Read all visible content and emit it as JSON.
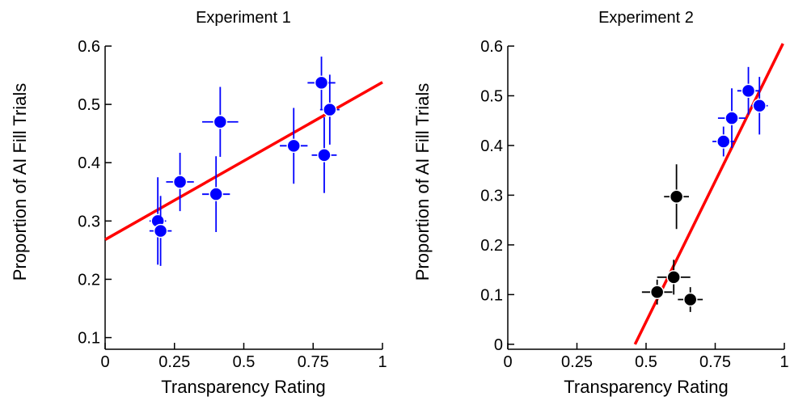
{
  "chart_data": [
    {
      "type": "scatter",
      "title": "Experiment 1",
      "xlabel": "Transparency Rating",
      "ylabel": "Proportion of AI Fill Trials",
      "xlim": [
        0,
        1
      ],
      "ylim": [
        0.08,
        0.6
      ],
      "xticks": [
        0,
        0.25,
        0.5,
        0.75,
        1
      ],
      "xtick_labels": [
        "0",
        "0.25",
        "0.5",
        "0.75",
        "1"
      ],
      "yticks": [
        0.1,
        0.2,
        0.3,
        0.4,
        0.5,
        0.6
      ],
      "ytick_labels": [
        "0.1",
        "0.2",
        "0.3",
        "0.4",
        "0.5",
        "0.6"
      ],
      "grid": false,
      "series": [
        {
          "color": "#0000ff",
          "points": [
            {
              "x": 0.19,
              "y": 0.3,
              "xerr": 0.03,
              "yerr": 0.075
            },
            {
              "x": 0.2,
              "y": 0.283,
              "xerr": 0.04,
              "yerr": 0.06
            },
            {
              "x": 0.27,
              "y": 0.367,
              "xerr": 0.05,
              "yerr": 0.05
            },
            {
              "x": 0.4,
              "y": 0.346,
              "xerr": 0.05,
              "yerr": 0.065
            },
            {
              "x": 0.415,
              "y": 0.47,
              "xerr": 0.065,
              "yerr": 0.06
            },
            {
              "x": 0.68,
              "y": 0.429,
              "xerr": 0.05,
              "yerr": 0.065
            },
            {
              "x": 0.78,
              "y": 0.537,
              "xerr": 0.05,
              "yerr": 0.045
            },
            {
              "x": 0.79,
              "y": 0.413,
              "xerr": 0.045,
              "yerr": 0.065
            },
            {
              "x": 0.81,
              "y": 0.491,
              "xerr": 0.035,
              "yerr": 0.06
            }
          ]
        }
      ],
      "fit_line": {
        "color": "#ff0000",
        "x": [
          0,
          1
        ],
        "y": [
          0.268,
          0.538
        ]
      }
    },
    {
      "type": "scatter",
      "title": "Experiment 2",
      "xlabel": "Transparency Rating",
      "ylabel": "Proportion of AI Fill Trials",
      "xlim": [
        0,
        1
      ],
      "ylim": [
        -0.01,
        0.6
      ],
      "xticks": [
        0,
        0.25,
        0.5,
        0.75,
        1
      ],
      "xtick_labels": [
        "0",
        "0.25",
        "0.5",
        "0.75",
        "1"
      ],
      "yticks": [
        0,
        0.1,
        0.2,
        0.3,
        0.4,
        0.5,
        0.6
      ],
      "ytick_labels": [
        "0",
        "0.1",
        "0.2",
        "0.3",
        "0.4",
        "0.5",
        "0.6"
      ],
      "grid": false,
      "series": [
        {
          "color": "#0000ff",
          "points": [
            {
              "x": 0.78,
              "y": 0.408,
              "xerr": 0.04,
              "yerr": 0.03
            },
            {
              "x": 0.81,
              "y": 0.455,
              "xerr": 0.05,
              "yerr": 0.06
            },
            {
              "x": 0.87,
              "y": 0.51,
              "xerr": 0.04,
              "yerr": 0.048
            },
            {
              "x": 0.91,
              "y": 0.48,
              "xerr": 0.03,
              "yerr": 0.058
            }
          ]
        },
        {
          "color": "#000000",
          "points": [
            {
              "x": 0.54,
              "y": 0.105,
              "xerr": 0.055,
              "yerr": 0.025
            },
            {
              "x": 0.6,
              "y": 0.135,
              "xerr": 0.06,
              "yerr": 0.035
            },
            {
              "x": 0.61,
              "y": 0.297,
              "xerr": 0.045,
              "yerr": 0.065
            },
            {
              "x": 0.66,
              "y": 0.09,
              "xerr": 0.045,
              "yerr": 0.025
            }
          ]
        }
      ],
      "fit_line": {
        "color": "#ff0000",
        "x": [
          0.46,
          0.995
        ],
        "y": [
          0.0,
          0.605
        ]
      }
    }
  ]
}
